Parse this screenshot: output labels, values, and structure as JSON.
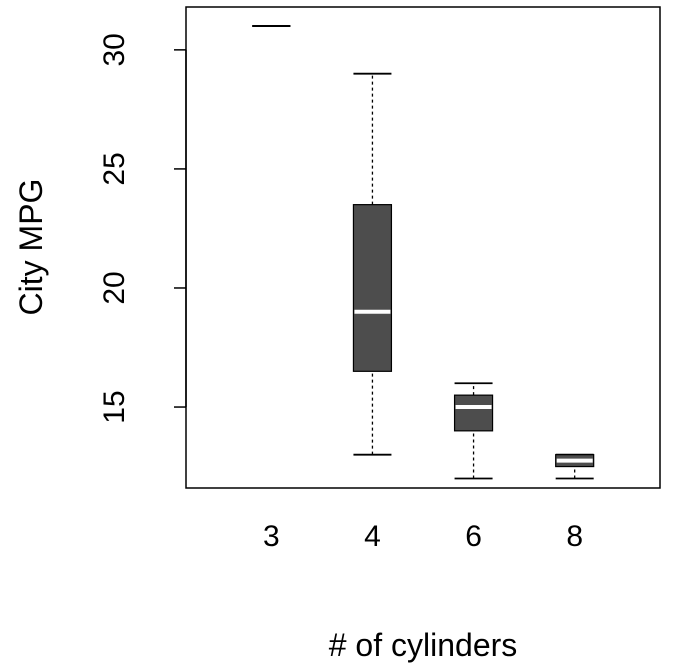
{
  "chart_data": {
    "type": "boxplot",
    "title": "",
    "xlabel": "# of cylinders",
    "ylabel": "City MPG",
    "categories": [
      "3",
      "4",
      "6",
      "8"
    ],
    "boxes": [
      {
        "category": "3",
        "min": 31,
        "q1": 31,
        "median": 31,
        "q3": 31,
        "max": 31
      },
      {
        "category": "4",
        "min": 13,
        "q1": 16.5,
        "median": 19,
        "q3": 23.5,
        "max": 29
      },
      {
        "category": "6",
        "min": 12,
        "q1": 14,
        "median": 15,
        "q3": 15.5,
        "max": 16
      },
      {
        "category": "8",
        "min": 12,
        "q1": 12.5,
        "median": 12.75,
        "q3": 13,
        "max": 13
      }
    ],
    "y_ticks": [
      15,
      20,
      25,
      30
    ],
    "y_tick_labels": [
      "15",
      "20",
      "25",
      "30"
    ],
    "ylim": [
      11.6,
      31.8
    ],
    "grid": false,
    "legend": "none",
    "colors": {
      "box_fill": "#4d4d4d",
      "median": "#ffffff",
      "outline": "#000000"
    }
  }
}
